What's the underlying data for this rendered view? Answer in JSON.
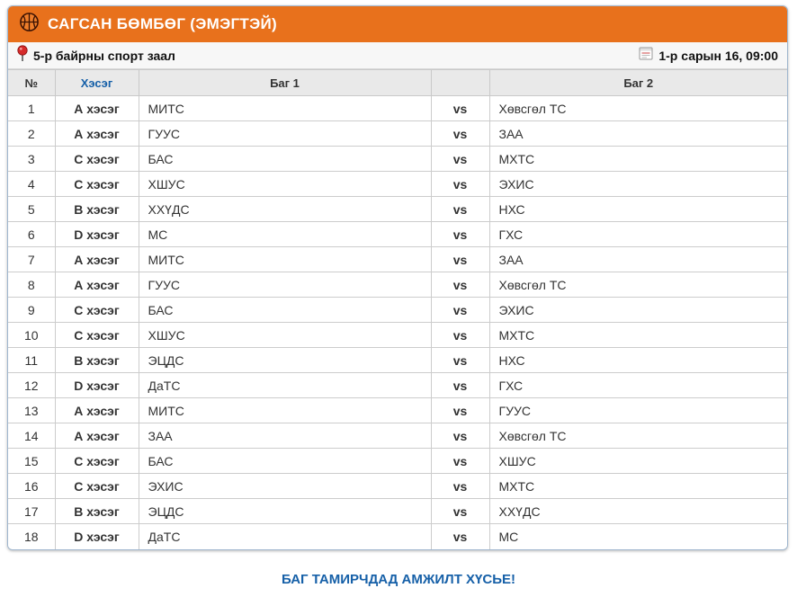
{
  "header": {
    "title": "САГСАН БӨМБӨГ (ЭМЭГТЭЙ)"
  },
  "subheader": {
    "venue": "5-р байрны спорт заал",
    "datetime": "1-р сарын 16, 09:00"
  },
  "table": {
    "columns": [
      "№",
      "Хэсэг",
      "Баг 1",
      "",
      "Баг 2"
    ],
    "vs_label": "vs",
    "rows": [
      {
        "no": "1",
        "group": "А хэсэг",
        "team1": "МИТС",
        "team2": "Хөвсгөл ТС"
      },
      {
        "no": "2",
        "group": "А хэсэг",
        "team1": "ГУУС",
        "team2": "ЗАА"
      },
      {
        "no": "3",
        "group": "С хэсэг",
        "team1": "БАС",
        "team2": "МХТС"
      },
      {
        "no": "4",
        "group": "С хэсэг",
        "team1": "ХШУС",
        "team2": "ЭХИС"
      },
      {
        "no": "5",
        "group": "В хэсэг",
        "team1": "ХХҮДС",
        "team2": "НХС"
      },
      {
        "no": "6",
        "group": "D хэсэг",
        "team1": "МС",
        "team2": "ГХС"
      },
      {
        "no": "7",
        "group": "А хэсэг",
        "team1": "МИТС",
        "team2": "ЗАА"
      },
      {
        "no": "8",
        "group": "А хэсэг",
        "team1": "ГУУС",
        "team2": "Хөвсгөл ТС"
      },
      {
        "no": "9",
        "group": "С хэсэг",
        "team1": "БАС",
        "team2": "ЭХИС"
      },
      {
        "no": "10",
        "group": "С хэсэг",
        "team1": "ХШУС",
        "team2": "МХТС"
      },
      {
        "no": "11",
        "group": "В хэсэг",
        "team1": "ЭЦДС",
        "team2": "НХС"
      },
      {
        "no": "12",
        "group": "D хэсэг",
        "team1": "ДаТС",
        "team2": "ГХС"
      },
      {
        "no": "13",
        "group": "А хэсэг",
        "team1": "МИТС",
        "team2": "ГУУС"
      },
      {
        "no": "14",
        "group": "А хэсэг",
        "team1": "ЗАА",
        "team2": "Хөвсгөл ТС"
      },
      {
        "no": "15",
        "group": "С хэсэг",
        "team1": "БАС",
        "team2": "ХШУС"
      },
      {
        "no": "16",
        "group": "С хэсэг",
        "team1": "ЭХИС",
        "team2": "МХТС"
      },
      {
        "no": "17",
        "group": "В хэсэг",
        "team1": "ЭЦДС",
        "team2": "ХХҮДС"
      },
      {
        "no": "18",
        "group": "D хэсэг",
        "team1": "ДаТС",
        "team2": "МС"
      }
    ]
  },
  "footer": {
    "message": "БАГ ТАМИРЧДАД АМЖИЛТ ХҮСЬЕ!"
  },
  "icons": {
    "title": "basketball-icon",
    "venue": "pushpin-icon",
    "datetime": "calendar-icon"
  },
  "colors": {
    "accent_orange": "#e8711c",
    "link_blue": "#1660a8",
    "vs_red": "#c42222",
    "header_gray": "#e9e9e9",
    "subbar_gray": "#f7f7f7",
    "card_border": "#9fb6ce"
  }
}
